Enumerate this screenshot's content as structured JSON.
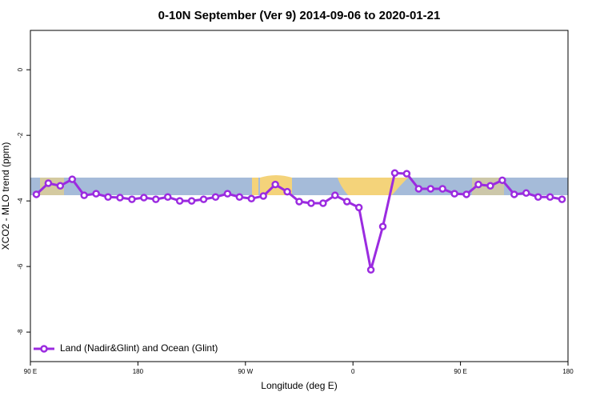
{
  "chart_data": {
    "type": "line",
    "title": "0-10N September (Ver 9)   2014-09-06 to 2020-01-21",
    "x_label": "Longitude (deg E)",
    "y_label": "XCO2 - MLO trend (ppm)",
    "xlim": [
      90,
      540
    ],
    "ylim": [
      1.2,
      -8.9
    ],
    "xticks": [
      {
        "value": 90,
        "label": "90 E"
      },
      180,
      {
        "value": 270,
        "label": "90 W"
      },
      {
        "value": 360,
        "label": "0"
      },
      {
        "value": 450,
        "label": "90 E"
      },
      {
        "value": 540,
        "label": "180"
      }
    ],
    "yticks": [
      0,
      -2,
      -4,
      -6,
      -8
    ],
    "legend": "bottom-left",
    "x": [
      95,
      105,
      115,
      125,
      135,
      145,
      155,
      165,
      175,
      185,
      195,
      205,
      215,
      225,
      235,
      245,
      255,
      265,
      275,
      285,
      295,
      305,
      315,
      325,
      335,
      345,
      355,
      365,
      375,
      385,
      395,
      405,
      415,
      425,
      435,
      445,
      455,
      465,
      475,
      485,
      495,
      505,
      515,
      525,
      535
    ],
    "series": [
      {
        "name": "Land (Nadir&Glint) and Ocean (Glint)",
        "color": "#9b2be0",
        "values": [
          -3.8,
          -3.46,
          -3.54,
          -3.34,
          -3.83,
          -3.78,
          -3.88,
          -3.9,
          -3.95,
          -3.9,
          -3.95,
          -3.88,
          -4.0,
          -4.0,
          -3.95,
          -3.88,
          -3.78,
          -3.88,
          -3.93,
          -3.85,
          -3.5,
          -3.72,
          -4.02,
          -4.07,
          -4.07,
          -3.83,
          -4.02,
          -4.2,
          -6.1,
          -4.78,
          -3.15,
          -3.17,
          -3.63,
          -3.63,
          -3.63,
          -3.78,
          -3.8,
          -3.5,
          -3.54,
          -3.37,
          -3.8,
          -3.76,
          -3.88,
          -3.88,
          -3.95
        ]
      }
    ]
  }
}
